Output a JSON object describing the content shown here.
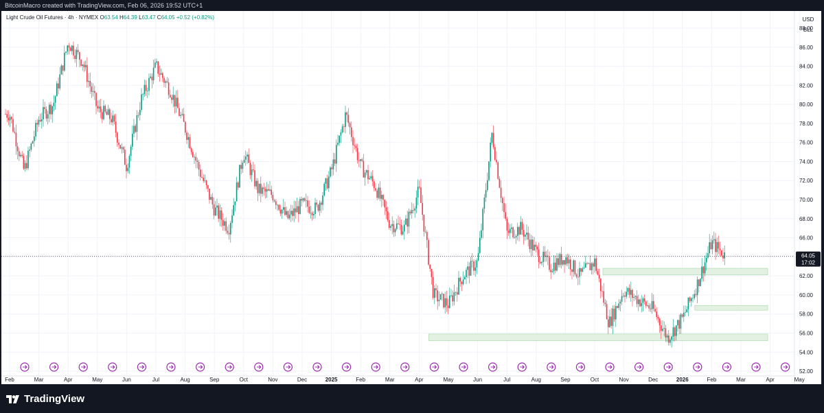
{
  "header": {
    "caption": "BitcoinMacro created with TradingView.com, Feb 06, 2026 19:52 UTC+1"
  },
  "legend": {
    "symbol": "Light Crude Oil Futures · 4h · NYMEX",
    "open_label": "O",
    "open": "63.54",
    "high_label": "H",
    "high": "64.39",
    "low_label": "L",
    "low": "63.47",
    "close_label": "C",
    "close": "64.05",
    "change": "+0.52 (+0.82%)"
  },
  "price_axis": {
    "currency": "USD",
    "unit": "BLL"
  },
  "footer": {
    "brand": "TradingView"
  },
  "colors": {
    "up": "#089981",
    "down": "#f23645",
    "zone_fill": "#e3f1e3",
    "zone_border": "#a5d6a7",
    "event_icon": "#9c27b0",
    "last_price_tag": "#131722"
  },
  "event_icons": {
    "icon": "arrow-right-circle-icon",
    "count": 27
  },
  "chart_data": {
    "type": "candlestick",
    "timeframe": "4h",
    "ylim": [
      51.5,
      89.8
    ],
    "y_ticks": [
      "52.00",
      "54.00",
      "56.00",
      "58.00",
      "60.00",
      "62.00",
      "64.00",
      "66.00",
      "68.00",
      "70.00",
      "72.00",
      "74.00",
      "76.00",
      "78.00",
      "80.00",
      "82.00",
      "84.00",
      "86.00",
      "88.00"
    ],
    "x_ticks": [
      "Feb",
      "Mar",
      "Apr",
      "May",
      "Jun",
      "Jul",
      "Aug",
      "Sep",
      "Oct",
      "Nov",
      "Dec",
      "2025",
      "Feb",
      "Mar",
      "Apr",
      "May",
      "Jun",
      "Jul",
      "Aug",
      "Sep",
      "Oct",
      "Nov",
      "Dec",
      "2026",
      "Feb",
      "Mar",
      "Apr",
      "May"
    ],
    "bold_ticks": [
      "2025",
      "2026"
    ],
    "last_price": "64.05",
    "countdown": "17:02",
    "price_path": [
      [
        "Feb",
        79.0
      ],
      [
        "Feb",
        73.0
      ],
      [
        "Mar",
        78.5
      ],
      [
        "Mar",
        80.0
      ],
      [
        "Apr",
        86.5
      ],
      [
        "Apr",
        84.5
      ],
      [
        "May",
        79.5
      ],
      [
        "May",
        78.5
      ],
      [
        "Jun",
        73.5
      ],
      [
        "Jun",
        80.5
      ],
      [
        "Jul",
        84.0
      ],
      [
        "Jul",
        81.5
      ],
      [
        "Aug",
        77.5
      ],
      [
        "Aug",
        73.0
      ],
      [
        "Sep",
        69.0
      ],
      [
        "Sep",
        67.0
      ],
      [
        "Oct",
        75.0
      ],
      [
        "Oct",
        71.0
      ],
      [
        "Nov",
        70.5
      ],
      [
        "Nov",
        68.0
      ],
      [
        "Dec",
        69.5
      ],
      [
        "Dec",
        69.0
      ],
      [
        "2025",
        73.0
      ],
      [
        "2025",
        79.0
      ],
      [
        "Feb",
        73.5
      ],
      [
        "Feb",
        71.5
      ],
      [
        "Mar",
        67.5
      ],
      [
        "Mar",
        67.0
      ],
      [
        "Apr",
        71.0
      ],
      [
        "Apr",
        60.0
      ],
      [
        "May",
        59.0
      ],
      [
        "May",
        62.0
      ],
      [
        "Jun",
        63.5
      ],
      [
        "Jun",
        77.0
      ],
      [
        "Jul",
        66.5
      ],
      [
        "Jul",
        67.0
      ],
      [
        "Aug",
        64.5
      ],
      [
        "Aug",
        63.0
      ],
      [
        "Sep",
        64.0
      ],
      [
        "Sep",
        62.0
      ],
      [
        "Oct",
        63.5
      ],
      [
        "Oct",
        57.0
      ],
      [
        "Nov",
        60.5
      ],
      [
        "Nov",
        59.5
      ],
      [
        "Dec",
        58.5
      ],
      [
        "Dec",
        55.5
      ],
      [
        "2026",
        57.5
      ],
      [
        "2026",
        61.0
      ],
      [
        "Feb",
        65.5
      ],
      [
        "Feb",
        64.05
      ]
    ],
    "annotations": {
      "price_line": 64.05,
      "zones": [
        {
          "y0": 62.1,
          "y1": 62.8,
          "x_start": "Oct",
          "x_end": "Mar"
        },
        {
          "y0": 58.4,
          "y1": 58.9,
          "x_start": "2026",
          "x_end": "Mar"
        },
        {
          "y0": 55.2,
          "y1": 55.9,
          "x_start": "Apr",
          "x_end": "Mar"
        }
      ]
    }
  }
}
